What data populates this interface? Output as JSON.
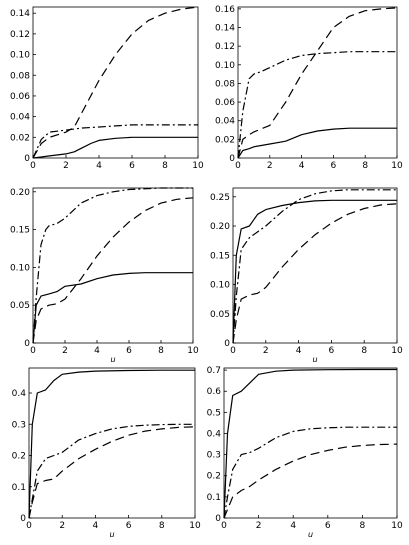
{
  "chart_data": [
    {
      "type": "line",
      "xlabel": "",
      "xlim": [
        0,
        10
      ],
      "ylim": [
        0,
        0.146
      ],
      "xticks": [
        "0",
        "2",
        "4",
        "6",
        "8",
        "10"
      ],
      "yticks": [
        "0",
        "0.02",
        "0.04",
        "0.06",
        "0.08",
        "0.10",
        "0.12",
        "0.14"
      ],
      "ytick_values": [
        0,
        0.02,
        0.04,
        0.06,
        0.08,
        0.1,
        0.12,
        0.14
      ],
      "series": [
        {
          "style": "solid",
          "x": [
            0,
            0.5,
            1,
            1.5,
            2,
            2.5,
            3,
            3.5,
            4,
            5,
            6,
            7,
            8,
            9,
            10
          ],
          "y": [
            0,
            0.001,
            0.002,
            0.003,
            0.004,
            0.006,
            0.01,
            0.014,
            0.017,
            0.019,
            0.02,
            0.02,
            0.02,
            0.02,
            0.02
          ]
        },
        {
          "style": "dashed",
          "x": [
            0,
            0.5,
            1,
            2,
            2.5,
            3,
            4,
            5,
            6,
            7,
            8,
            9,
            10
          ],
          "y": [
            0,
            0.014,
            0.02,
            0.025,
            0.03,
            0.045,
            0.075,
            0.1,
            0.12,
            0.133,
            0.14,
            0.144,
            0.146
          ]
        },
        {
          "style": "dashdot",
          "x": [
            0,
            0.5,
            1,
            2,
            3,
            4,
            5,
            6,
            7,
            8,
            9,
            10
          ],
          "y": [
            0,
            0.018,
            0.025,
            0.027,
            0.029,
            0.03,
            0.031,
            0.032,
            0.032,
            0.032,
            0.032,
            0.032
          ]
        }
      ]
    },
    {
      "type": "line",
      "xlabel": "",
      "xlim": [
        0,
        10
      ],
      "ylim": [
        0,
        0.162
      ],
      "xticks": [
        "0",
        "2",
        "4",
        "6",
        "8",
        "10"
      ],
      "yticks": [
        "0",
        "0.02",
        "0.04",
        "0.06",
        "0.08",
        "0.10",
        "0.12",
        "0.14",
        "0.16"
      ],
      "ytick_values": [
        0,
        0.02,
        0.04,
        0.06,
        0.08,
        0.1,
        0.12,
        0.14,
        0.16
      ],
      "series": [
        {
          "style": "solid",
          "x": [
            0,
            0.3,
            0.7,
            1,
            2,
            3,
            4,
            5,
            6,
            7,
            8,
            9,
            10
          ],
          "y": [
            0,
            0.008,
            0.01,
            0.012,
            0.015,
            0.018,
            0.025,
            0.029,
            0.031,
            0.032,
            0.032,
            0.032,
            0.032
          ]
        },
        {
          "style": "dashed",
          "x": [
            0,
            0.3,
            0.7,
            1,
            2,
            3,
            4,
            5,
            6,
            7,
            8,
            9,
            10
          ],
          "y": [
            0,
            0.02,
            0.025,
            0.028,
            0.035,
            0.06,
            0.09,
            0.115,
            0.14,
            0.152,
            0.158,
            0.16,
            0.161
          ]
        },
        {
          "style": "dashdot",
          "x": [
            0,
            0.3,
            0.7,
            1,
            1.5,
            2,
            3,
            4,
            5,
            6,
            7,
            8,
            9,
            10
          ],
          "y": [
            0,
            0.05,
            0.085,
            0.09,
            0.093,
            0.097,
            0.105,
            0.11,
            0.112,
            0.113,
            0.114,
            0.114,
            0.114,
            0.114
          ]
        }
      ]
    },
    {
      "type": "line",
      "xlabel": "u",
      "xlim": [
        0,
        10
      ],
      "ylim": [
        0,
        0.205
      ],
      "xticks": [
        "0",
        "2",
        "4",
        "6",
        "8",
        "10"
      ],
      "yticks": [
        "0",
        "0.05",
        "0.10",
        "0.15",
        "0.20"
      ],
      "ytick_values": [
        0,
        0.05,
        0.1,
        0.15,
        0.2
      ],
      "series": [
        {
          "style": "solid",
          "x": [
            0,
            0.2,
            0.5,
            1,
            1.5,
            2,
            3,
            4,
            5,
            6,
            7,
            8,
            9,
            10
          ],
          "y": [
            0,
            0.05,
            0.062,
            0.065,
            0.068,
            0.075,
            0.078,
            0.085,
            0.09,
            0.092,
            0.093,
            0.093,
            0.093,
            0.093
          ]
        },
        {
          "style": "dashed",
          "x": [
            0,
            0.2,
            0.5,
            1,
            1.5,
            2,
            3,
            4,
            5,
            6,
            7,
            8,
            9,
            10
          ],
          "y": [
            0,
            0.03,
            0.045,
            0.05,
            0.052,
            0.058,
            0.085,
            0.115,
            0.14,
            0.16,
            0.175,
            0.185,
            0.19,
            0.192
          ]
        },
        {
          "style": "dashdot",
          "x": [
            0,
            0.2,
            0.5,
            0.8,
            1,
            1.5,
            2,
            3,
            4,
            5,
            6,
            7,
            8,
            9,
            10
          ],
          "y": [
            0,
            0.06,
            0.13,
            0.15,
            0.155,
            0.158,
            0.165,
            0.185,
            0.195,
            0.2,
            0.203,
            0.204,
            0.205,
            0.205,
            0.205
          ]
        }
      ]
    },
    {
      "type": "line",
      "xlabel": "u",
      "xlim": [
        0,
        10
      ],
      "ylim": [
        0,
        0.265
      ],
      "xticks": [
        "0",
        "2",
        "4",
        "6",
        "8",
        "10"
      ],
      "yticks": [
        "0",
        "0.05",
        "0.10",
        "0.15",
        "0.20",
        "0.25"
      ],
      "ytick_values": [
        0,
        0.05,
        0.1,
        0.15,
        0.2,
        0.25
      ],
      "series": [
        {
          "style": "solid",
          "x": [
            0,
            0.2,
            0.5,
            1,
            1.5,
            2,
            3,
            4,
            5,
            6,
            8,
            10
          ],
          "y": [
            0,
            0.15,
            0.195,
            0.2,
            0.22,
            0.228,
            0.235,
            0.24,
            0.243,
            0.244,
            0.244,
            0.244
          ]
        },
        {
          "style": "dashed",
          "x": [
            0,
            0.2,
            0.5,
            1,
            1.5,
            2,
            3,
            4,
            5,
            6,
            7,
            8,
            9,
            10
          ],
          "y": [
            0,
            0.04,
            0.075,
            0.082,
            0.085,
            0.095,
            0.13,
            0.16,
            0.185,
            0.205,
            0.22,
            0.23,
            0.236,
            0.238
          ]
        },
        {
          "style": "dashdot",
          "x": [
            0,
            0.2,
            0.5,
            1,
            1.5,
            2,
            3,
            4,
            5,
            6,
            7,
            10
          ],
          "y": [
            0,
            0.08,
            0.16,
            0.18,
            0.19,
            0.2,
            0.225,
            0.245,
            0.255,
            0.26,
            0.262,
            0.262
          ]
        }
      ]
    },
    {
      "type": "line",
      "xlabel": "u",
      "xlim": [
        0,
        10
      ],
      "ylim": [
        0,
        0.48
      ],
      "xticks": [
        "0",
        "2",
        "4",
        "6",
        "8",
        "10"
      ],
      "yticks": [
        "0",
        "0.1",
        "0.2",
        "0.3",
        "0.4"
      ],
      "ytick_values": [
        0,
        0.1,
        0.2,
        0.3,
        0.4
      ],
      "series": [
        {
          "style": "solid",
          "x": [
            0,
            0.2,
            0.5,
            1,
            1.5,
            2,
            3,
            4,
            6,
            8,
            10
          ],
          "y": [
            0,
            0.3,
            0.4,
            0.41,
            0.44,
            0.46,
            0.467,
            0.47,
            0.472,
            0.473,
            0.473
          ]
        },
        {
          "style": "dashed",
          "x": [
            0,
            0.2,
            0.5,
            1,
            1.5,
            2,
            3,
            4,
            5,
            6,
            7,
            8,
            9,
            10
          ],
          "y": [
            0,
            0.05,
            0.11,
            0.12,
            0.125,
            0.15,
            0.19,
            0.22,
            0.245,
            0.265,
            0.278,
            0.285,
            0.29,
            0.292
          ]
        },
        {
          "style": "dashdot",
          "x": [
            0,
            0.2,
            0.5,
            1,
            1.5,
            2,
            3,
            4,
            5,
            6,
            7,
            8,
            9,
            10
          ],
          "y": [
            0,
            0.06,
            0.15,
            0.19,
            0.2,
            0.21,
            0.25,
            0.27,
            0.285,
            0.293,
            0.297,
            0.299,
            0.3,
            0.3
          ]
        }
      ]
    },
    {
      "type": "line",
      "xlabel": "u",
      "xlim": [
        0,
        10
      ],
      "ylim": [
        0,
        0.71
      ],
      "xticks": [
        "0",
        "2",
        "4",
        "6",
        "8",
        "10"
      ],
      "yticks": [
        "0",
        "0.1",
        "0.2",
        "0.3",
        "0.4",
        "0.5",
        "0.6",
        "0.7"
      ],
      "ytick_values": [
        0,
        0.1,
        0.2,
        0.3,
        0.4,
        0.5,
        0.6,
        0.7
      ],
      "series": [
        {
          "style": "solid",
          "x": [
            0,
            0.2,
            0.5,
            1,
            1.5,
            2,
            3,
            4,
            6,
            8,
            10
          ],
          "y": [
            0,
            0.4,
            0.58,
            0.6,
            0.64,
            0.68,
            0.695,
            0.7,
            0.702,
            0.703,
            0.703
          ]
        },
        {
          "style": "dashed",
          "x": [
            0,
            0.2,
            0.5,
            1,
            1.5,
            2,
            3,
            4,
            5,
            6,
            7,
            8,
            9,
            10
          ],
          "y": [
            0,
            0.04,
            0.1,
            0.13,
            0.15,
            0.18,
            0.23,
            0.27,
            0.3,
            0.32,
            0.335,
            0.343,
            0.348,
            0.35
          ]
        },
        {
          "style": "dashdot",
          "x": [
            0,
            0.2,
            0.5,
            1,
            1.5,
            2,
            3,
            4,
            5,
            6,
            7,
            8,
            9,
            10
          ],
          "y": [
            0,
            0.1,
            0.23,
            0.3,
            0.31,
            0.33,
            0.38,
            0.41,
            0.422,
            0.427,
            0.43,
            0.43,
            0.43,
            0.43
          ]
        }
      ]
    }
  ]
}
